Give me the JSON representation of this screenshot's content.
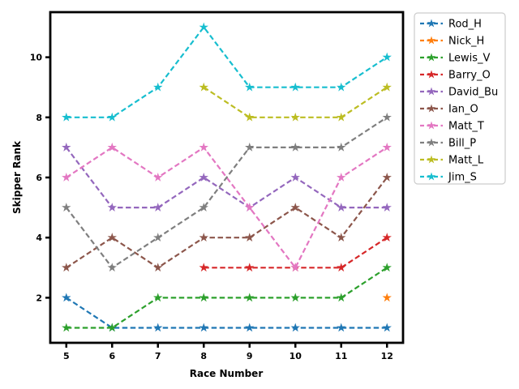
{
  "chart_data": {
    "type": "line",
    "title": "",
    "xlabel": "Race Number",
    "ylabel": "Skipper Rank",
    "x": [
      5,
      6,
      7,
      8,
      9,
      10,
      11,
      12
    ],
    "xticks": [
      5,
      6,
      7,
      8,
      9,
      10,
      11,
      12
    ],
    "yticks": [
      2,
      4,
      6,
      8,
      10
    ],
    "xlim": [
      4.65,
      12.35
    ],
    "ylim": [
      0.5,
      11.5
    ],
    "grid": false,
    "line_style": "dashed",
    "marker": "star",
    "legend_position": "outside-upper-right",
    "axis_color": "#000000",
    "background_color": "#ffffff",
    "legend_border_color": "#cccccc",
    "series": [
      {
        "name": "Rod_H",
        "color": "#1f77b4",
        "values": [
          2,
          1,
          1,
          1,
          1,
          1,
          1,
          1
        ]
      },
      {
        "name": "Nick_H",
        "color": "#ff7f0e",
        "values": [
          null,
          null,
          null,
          null,
          null,
          null,
          null,
          2
        ]
      },
      {
        "name": "Lewis_V",
        "color": "#2ca02c",
        "values": [
          1,
          1,
          2,
          2,
          2,
          2,
          2,
          3
        ]
      },
      {
        "name": "Barry_O",
        "color": "#d62728",
        "values": [
          null,
          null,
          null,
          3,
          3,
          3,
          3,
          4
        ]
      },
      {
        "name": "David_Bu",
        "color": "#9467bd",
        "values": [
          7,
          5,
          5,
          6,
          5,
          6,
          5,
          5
        ]
      },
      {
        "name": "Ian_O",
        "color": "#8c564b",
        "values": [
          3,
          4,
          3,
          4,
          4,
          5,
          4,
          6
        ]
      },
      {
        "name": "Matt_T",
        "color": "#e377c2",
        "values": [
          6,
          7,
          6,
          7,
          5,
          3,
          6,
          7
        ]
      },
      {
        "name": "Bill_P",
        "color": "#7f7f7f",
        "values": [
          5,
          3,
          4,
          5,
          7,
          7,
          7,
          8
        ]
      },
      {
        "name": "Matt_L",
        "color": "#bcbd22",
        "values": [
          null,
          null,
          null,
          9,
          8,
          8,
          8,
          9
        ]
      },
      {
        "name": "Jim_S",
        "color": "#17becf",
        "values": [
          8,
          8,
          9,
          11,
          9,
          9,
          9,
          10
        ]
      }
    ]
  }
}
